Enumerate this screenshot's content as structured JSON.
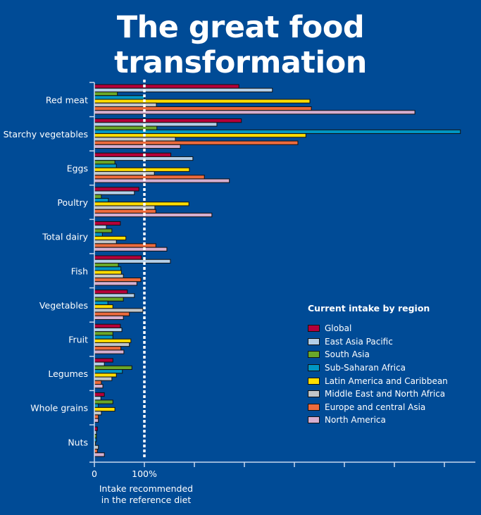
{
  "title": "The great food transformation",
  "legend": {
    "title": "Current intake by region"
  },
  "note": {
    "line1": "Intake recommended",
    "line2": "in the reference diet"
  },
  "colors": {
    "background": "#004b96",
    "axis": "#c8d8ee",
    "reference_line": "#ffffff"
  },
  "chart_data": {
    "type": "bar",
    "orientation": "horizontal",
    "title": "The great food transformation",
    "xlabel": "Intake recommended in the reference diet",
    "ylabel": "",
    "unit": "% of reference diet intake",
    "xlim": [
      0,
      750
    ],
    "xticks": [
      0,
      100,
      200,
      300,
      400,
      500,
      600,
      700
    ],
    "xtick_labels": [
      "0",
      "100%",
      "",
      "",
      "",
      "",
      "",
      ""
    ],
    "reference_line": 100,
    "legend_position": "right",
    "grid": false,
    "categories": [
      "Red meat",
      "Starchy vegetables",
      "Eggs",
      "Poultry",
      "Total dairy",
      "Fish",
      "Vegetables",
      "Fruit",
      "Legumes",
      "Whole grains",
      "Nuts"
    ],
    "series": [
      {
        "name": "Global",
        "color": "#b5003a",
        "values": [
          289,
          294,
          153,
          89,
          52,
          94,
          66,
          52,
          37,
          20,
          6
        ]
      },
      {
        "name": "East Asia Pacific",
        "color": "#b4cfe8",
        "values": [
          356,
          245,
          197,
          80,
          24,
          152,
          80,
          55,
          20,
          13,
          4
        ]
      },
      {
        "name": "South Asia",
        "color": "#6aa729",
        "values": [
          46,
          125,
          41,
          14,
          35,
          48,
          58,
          37,
          75,
          37,
          4
        ]
      },
      {
        "name": "Sub-Saharan Africa",
        "color": "#0096c4",
        "values": [
          100,
          732,
          44,
          28,
          16,
          53,
          27,
          37,
          56,
          8,
          4
        ]
      },
      {
        "name": "Latin America and Caribbean",
        "color": "#ffdd00",
        "values": [
          431,
          423,
          190,
          189,
          63,
          54,
          37,
          73,
          44,
          41,
          2
        ]
      },
      {
        "name": "Middle East and North Africa",
        "color": "#c2c6c9",
        "values": [
          124,
          162,
          120,
          121,
          44,
          58,
          97,
          70,
          35,
          14,
          8
        ]
      },
      {
        "name": "Europe and central  Asia",
        "color": "#ec6b3d",
        "values": [
          434,
          407,
          220,
          123,
          123,
          93,
          70,
          53,
          14,
          8,
          6
        ]
      },
      {
        "name": "North America",
        "color": "#d6afd0",
        "values": [
          641,
          172,
          270,
          235,
          145,
          85,
          58,
          59,
          17,
          8,
          20
        ]
      }
    ]
  }
}
